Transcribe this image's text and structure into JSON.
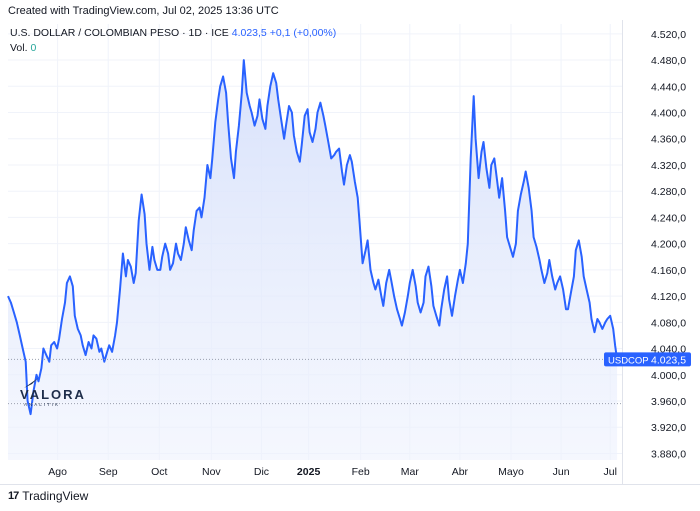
{
  "header": {
    "created_text": "Created with TradingView.com, Jul 02, 2025 13:36 UTC",
    "symbol_title": "U.S. DOLLAR / COLOMBIAN PESO · 1D · ICE",
    "last_price": "4.023,5",
    "change": "+0,1 (+0,00%)",
    "vol_label": "Vol.",
    "vol_value": "0"
  },
  "watermark": {
    "title": "VALORA",
    "subtitle": "ANALITIK"
  },
  "footer": {
    "brand": "TradingView",
    "logo_text": "17"
  },
  "price_tag": {
    "symbol": "USDCOP",
    "value": "4.023,5"
  },
  "colors": {
    "line": "#2962ff",
    "fill": "#e3eafd",
    "tag": "#2962ff"
  },
  "chart_data": {
    "type": "area",
    "series": [
      {
        "name": "USDCOP",
        "values": [
          [
            0.0,
            4120
          ],
          [
            0.3,
            4110
          ],
          [
            0.6,
            4095
          ],
          [
            0.9,
            4080
          ],
          [
            1.2,
            4060
          ],
          [
            1.5,
            4040
          ],
          [
            1.8,
            4020
          ],
          [
            2.0,
            3960
          ],
          [
            2.3,
            3940
          ],
          [
            2.6,
            3975
          ],
          [
            2.9,
            4000
          ],
          [
            3.1,
            3990
          ],
          [
            3.4,
            4010
          ],
          [
            3.6,
            4040
          ],
          [
            3.9,
            4030
          ],
          [
            4.2,
            4020
          ],
          [
            4.4,
            4045
          ],
          [
            4.7,
            4050
          ],
          [
            5.0,
            4040
          ],
          [
            5.2,
            4055
          ],
          [
            5.5,
            4085
          ],
          [
            5.8,
            4110
          ],
          [
            6.0,
            4140
          ],
          [
            6.3,
            4150
          ],
          [
            6.6,
            4135
          ],
          [
            6.8,
            4090
          ],
          [
            7.1,
            4070
          ],
          [
            7.4,
            4060
          ],
          [
            7.6,
            4045
          ],
          [
            7.9,
            4030
          ],
          [
            8.2,
            4050
          ],
          [
            8.5,
            4040
          ],
          [
            8.7,
            4060
          ],
          [
            9.0,
            4055
          ],
          [
            9.3,
            4035
          ],
          [
            9.5,
            4040
          ],
          [
            9.8,
            4020
          ],
          [
            10.1,
            4035
          ],
          [
            10.3,
            4045
          ],
          [
            10.6,
            4035
          ],
          [
            10.9,
            4060
          ],
          [
            11.1,
            4080
          ],
          [
            11.4,
            4130
          ],
          [
            11.7,
            4185
          ],
          [
            12.0,
            4150
          ],
          [
            12.2,
            4175
          ],
          [
            12.5,
            4165
          ],
          [
            12.8,
            4140
          ],
          [
            13.0,
            4155
          ],
          [
            13.3,
            4235
          ],
          [
            13.6,
            4275
          ],
          [
            13.9,
            4245
          ],
          [
            14.1,
            4200
          ],
          [
            14.4,
            4160
          ],
          [
            14.7,
            4195
          ],
          [
            14.9,
            4175
          ],
          [
            15.2,
            4160
          ],
          [
            15.5,
            4160
          ],
          [
            15.7,
            4180
          ],
          [
            16.0,
            4200
          ],
          [
            16.3,
            4185
          ],
          [
            16.5,
            4160
          ],
          [
            16.8,
            4170
          ],
          [
            17.1,
            4200
          ],
          [
            17.3,
            4185
          ],
          [
            17.6,
            4175
          ],
          [
            17.9,
            4200
          ],
          [
            18.1,
            4225
          ],
          [
            18.4,
            4205
          ],
          [
            18.7,
            4190
          ],
          [
            18.9,
            4220
          ],
          [
            19.2,
            4250
          ],
          [
            19.5,
            4255
          ],
          [
            19.7,
            4240
          ],
          [
            20.0,
            4270
          ],
          [
            20.3,
            4320
          ],
          [
            20.6,
            4300
          ],
          [
            20.8,
            4330
          ],
          [
            21.1,
            4385
          ],
          [
            21.4,
            4420
          ],
          [
            21.6,
            4440
          ],
          [
            21.9,
            4455
          ],
          [
            22.2,
            4430
          ],
          [
            22.4,
            4385
          ],
          [
            22.7,
            4330
          ],
          [
            23.0,
            4300
          ],
          [
            23.2,
            4340
          ],
          [
            23.5,
            4380
          ],
          [
            23.8,
            4430
          ],
          [
            24.0,
            4480
          ],
          [
            24.3,
            4430
          ],
          [
            24.6,
            4410
          ],
          [
            24.8,
            4400
          ],
          [
            25.1,
            4380
          ],
          [
            25.4,
            4395
          ],
          [
            25.6,
            4420
          ],
          [
            25.9,
            4390
          ],
          [
            26.2,
            4375
          ],
          [
            26.4,
            4410
          ],
          [
            26.7,
            4440
          ],
          [
            27.0,
            4460
          ],
          [
            27.3,
            4445
          ],
          [
            27.5,
            4420
          ],
          [
            27.8,
            4390
          ],
          [
            28.1,
            4360
          ],
          [
            28.3,
            4380
          ],
          [
            28.6,
            4410
          ],
          [
            28.9,
            4400
          ],
          [
            29.1,
            4365
          ],
          [
            29.4,
            4340
          ],
          [
            29.7,
            4325
          ],
          [
            29.9,
            4350
          ],
          [
            30.2,
            4395
          ],
          [
            30.5,
            4405
          ],
          [
            30.7,
            4370
          ],
          [
            31.0,
            4355
          ],
          [
            31.3,
            4375
          ],
          [
            31.5,
            4400
          ],
          [
            31.8,
            4415
          ],
          [
            32.1,
            4395
          ],
          [
            32.3,
            4380
          ],
          [
            32.6,
            4355
          ],
          [
            32.9,
            4330
          ],
          [
            33.2,
            4335
          ],
          [
            33.4,
            4340
          ],
          [
            33.7,
            4345
          ],
          [
            34.0,
            4310
          ],
          [
            34.2,
            4290
          ],
          [
            34.5,
            4320
          ],
          [
            34.8,
            4335
          ],
          [
            35.0,
            4325
          ],
          [
            35.3,
            4295
          ],
          [
            35.6,
            4270
          ],
          [
            35.8,
            4230
          ],
          [
            36.1,
            4170
          ],
          [
            36.4,
            4190
          ],
          [
            36.6,
            4205
          ],
          [
            36.9,
            4160
          ],
          [
            37.2,
            4140
          ],
          [
            37.4,
            4130
          ],
          [
            37.7,
            4145
          ],
          [
            38.0,
            4120
          ],
          [
            38.2,
            4105
          ],
          [
            38.5,
            4140
          ],
          [
            38.8,
            4160
          ],
          [
            39.0,
            4145
          ],
          [
            39.3,
            4120
          ],
          [
            39.6,
            4100
          ],
          [
            39.9,
            4085
          ],
          [
            40.1,
            4075
          ],
          [
            40.4,
            4095
          ],
          [
            40.7,
            4120
          ],
          [
            40.9,
            4140
          ],
          [
            41.2,
            4160
          ],
          [
            41.5,
            4135
          ],
          [
            41.7,
            4110
          ],
          [
            42.0,
            4095
          ],
          [
            42.3,
            4110
          ],
          [
            42.5,
            4150
          ],
          [
            42.8,
            4165
          ],
          [
            43.1,
            4135
          ],
          [
            43.3,
            4105
          ],
          [
            43.6,
            4090
          ],
          [
            43.9,
            4075
          ],
          [
            44.1,
            4100
          ],
          [
            44.4,
            4130
          ],
          [
            44.7,
            4150
          ],
          [
            44.9,
            4115
          ],
          [
            45.2,
            4090
          ],
          [
            45.5,
            4120
          ],
          [
            45.8,
            4145
          ],
          [
            46.0,
            4160
          ],
          [
            46.3,
            4140
          ],
          [
            46.6,
            4170
          ],
          [
            46.8,
            4200
          ],
          [
            47.1,
            4330
          ],
          [
            47.4,
            4425
          ],
          [
            47.6,
            4360
          ],
          [
            47.9,
            4300
          ],
          [
            48.2,
            4340
          ],
          [
            48.4,
            4355
          ],
          [
            48.7,
            4315
          ],
          [
            49.0,
            4285
          ],
          [
            49.2,
            4320
          ],
          [
            49.5,
            4330
          ],
          [
            49.8,
            4295
          ],
          [
            50.0,
            4270
          ],
          [
            50.3,
            4300
          ],
          [
            50.6,
            4250
          ],
          [
            50.8,
            4210
          ],
          [
            51.1,
            4195
          ],
          [
            51.4,
            4180
          ],
          [
            51.7,
            4200
          ],
          [
            51.9,
            4250
          ],
          [
            52.2,
            4275
          ],
          [
            52.5,
            4295
          ],
          [
            52.7,
            4310
          ],
          [
            53.0,
            4285
          ],
          [
            53.3,
            4250
          ],
          [
            53.5,
            4210
          ],
          [
            53.8,
            4195
          ],
          [
            54.1,
            4175
          ],
          [
            54.3,
            4160
          ],
          [
            54.6,
            4140
          ],
          [
            54.9,
            4155
          ],
          [
            55.1,
            4175
          ],
          [
            55.4,
            4150
          ],
          [
            55.7,
            4130
          ],
          [
            55.9,
            4140
          ],
          [
            56.2,
            4150
          ],
          [
            56.5,
            4130
          ],
          [
            56.8,
            4100
          ],
          [
            57.0,
            4100
          ],
          [
            57.3,
            4125
          ],
          [
            57.6,
            4150
          ],
          [
            57.8,
            4190
          ],
          [
            58.1,
            4205
          ],
          [
            58.4,
            4180
          ],
          [
            58.6,
            4150
          ],
          [
            58.9,
            4130
          ],
          [
            59.2,
            4110
          ],
          [
            59.4,
            4085
          ],
          [
            59.7,
            4065
          ],
          [
            60.0,
            4085
          ],
          [
            60.2,
            4080
          ],
          [
            60.5,
            4070
          ],
          [
            60.8,
            4080
          ],
          [
            61.0,
            4085
          ],
          [
            61.3,
            4090
          ],
          [
            61.6,
            4070
          ],
          [
            61.8,
            4045
          ],
          [
            62.0,
            4023.5
          ]
        ]
      }
    ],
    "x_ticks": [
      {
        "label": "Ago",
        "pos": 5.05
      },
      {
        "label": "Sep",
        "pos": 10.2
      },
      {
        "label": "Oct",
        "pos": 15.4
      },
      {
        "label": "Nov",
        "pos": 20.7
      },
      {
        "label": "Dic",
        "pos": 25.8
      },
      {
        "label": "2025",
        "pos": 30.6,
        "bold": true
      },
      {
        "label": "Feb",
        "pos": 35.9
      },
      {
        "label": "Mar",
        "pos": 40.9
      },
      {
        "label": "Abr",
        "pos": 46.0
      },
      {
        "label": "Mayo",
        "pos": 51.2
      },
      {
        "label": "Jun",
        "pos": 56.3
      },
      {
        "label": "Jul",
        "pos": 61.3
      }
    ],
    "y_ticks": [
      {
        "label": "4.520,0",
        "value": 4520
      },
      {
        "label": "4.480,0",
        "value": 4480
      },
      {
        "label": "4.440,0",
        "value": 4440
      },
      {
        "label": "4.400,0",
        "value": 4400
      },
      {
        "label": "4.360,0",
        "value": 4360
      },
      {
        "label": "4.320,0",
        "value": 4320
      },
      {
        "label": "4.280,0",
        "value": 4280
      },
      {
        "label": "4.240,0",
        "value": 4240
      },
      {
        "label": "4.200,0",
        "value": 4200
      },
      {
        "label": "4.160,0",
        "value": 4160
      },
      {
        "label": "4.120,0",
        "value": 4120
      },
      {
        "label": "4.080,0",
        "value": 4080
      },
      {
        "label": "4.040,0",
        "value": 4040
      },
      {
        "label": "4.000,0",
        "value": 4000
      },
      {
        "label": "3.960,0",
        "value": 3960
      },
      {
        "label": "3.920,0",
        "value": 3920
      },
      {
        "label": "3.880,0",
        "value": 3880
      }
    ],
    "ylim": [
      3870,
      4535
    ],
    "xlim": [
      0,
      62.5
    ],
    "reference_lines": [
      4023.5,
      3956
    ],
    "grid": true
  }
}
